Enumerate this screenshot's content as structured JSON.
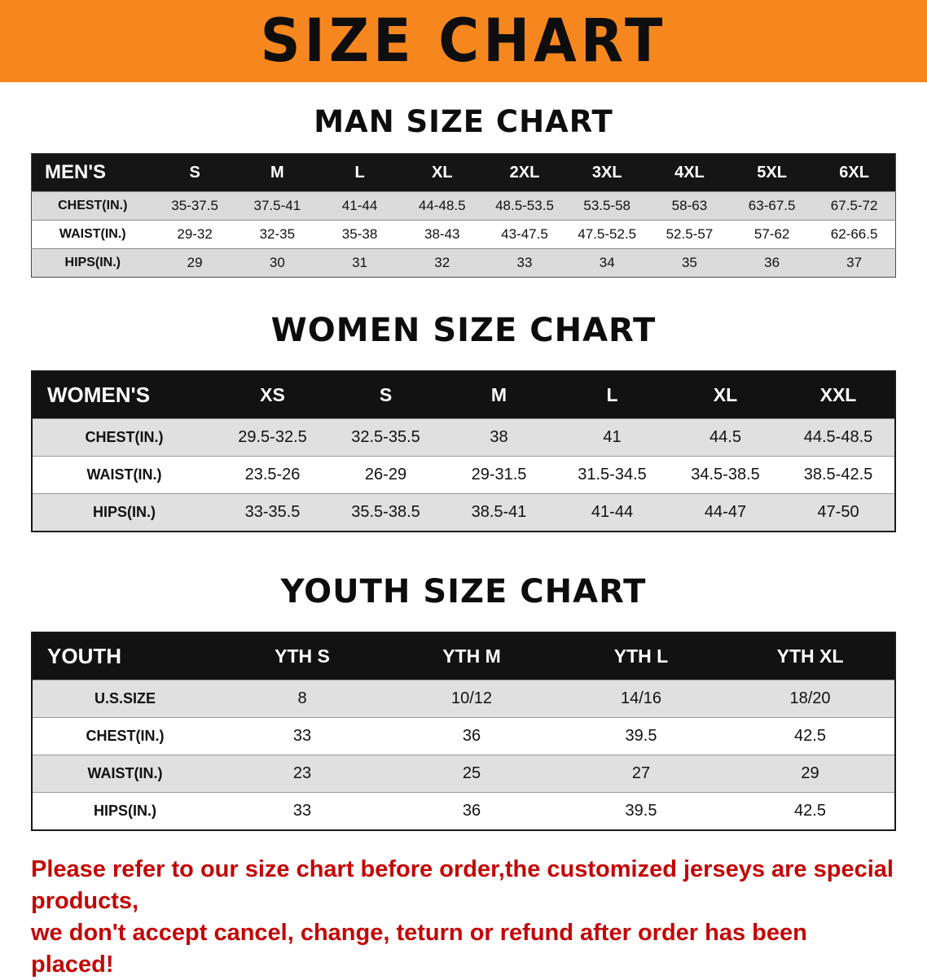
{
  "banner": {
    "title": "SIZE CHART"
  },
  "headings": {
    "men": "MAN SIZE CHART",
    "women": "WOMEN SIZE CHART",
    "youth": "YOUTH SIZE CHART"
  },
  "tables": {
    "men": {
      "header": [
        "MEN'S",
        "S",
        "M",
        "L",
        "XL",
        "2XL",
        "3XL",
        "4XL",
        "5XL",
        "6XL"
      ],
      "rows": [
        [
          "CHEST(IN.)",
          "35-37.5",
          "37.5-41",
          "41-44",
          "44-48.5",
          "48.5-53.5",
          "53.5-58",
          "58-63",
          "63-67.5",
          "67.5-72"
        ],
        [
          "WAIST(IN.)",
          "29-32",
          "32-35",
          "35-38",
          "38-43",
          "43-47.5",
          "47.5-52.5",
          "52.5-57",
          "57-62",
          "62-66.5"
        ],
        [
          "HIPS(IN.)",
          "29",
          "30",
          "31",
          "32",
          "33",
          "34",
          "35",
          "36",
          "37"
        ]
      ]
    },
    "women": {
      "header": [
        "WOMEN'S",
        "XS",
        "S",
        "M",
        "L",
        "XL",
        "XXL"
      ],
      "rows": [
        [
          "CHEST(IN.)",
          "29.5-32.5",
          "32.5-35.5",
          "38",
          "41",
          "44.5",
          "44.5-48.5"
        ],
        [
          "WAIST(IN.)",
          "23.5-26",
          "26-29",
          "29-31.5",
          "31.5-34.5",
          "34.5-38.5",
          "38.5-42.5"
        ],
        [
          "HIPS(IN.)",
          "33-35.5",
          "35.5-38.5",
          "38.5-41",
          "41-44",
          "44-47",
          "47-50"
        ]
      ]
    },
    "youth": {
      "header": [
        "YOUTH",
        "YTH S",
        "YTH M",
        "YTH L",
        "YTH XL"
      ],
      "rows": [
        [
          "U.S.SIZE",
          "8",
          "10/12",
          "14/16",
          "18/20"
        ],
        [
          "CHEST(IN.)",
          "33",
          "36",
          "39.5",
          "42.5"
        ],
        [
          "WAIST(IN.)",
          "23",
          "25",
          "27",
          "29"
        ],
        [
          "HIPS(IN.)",
          "33",
          "36",
          "39.5",
          "42.5"
        ]
      ]
    }
  },
  "footer": {
    "line1": "Please refer to our size chart before order,the customized jerseys are special products,",
    "line2": "we don't accept cancel, change, teturn or refund after order has been placed!"
  },
  "colors": {
    "banner_bg": "#F6871F",
    "table_header_bg": "#141414",
    "row_alt_bg_men": "#DBDBDB",
    "row_alt_bg_big": "#E0E0E0",
    "notice_red": "#C40505"
  }
}
